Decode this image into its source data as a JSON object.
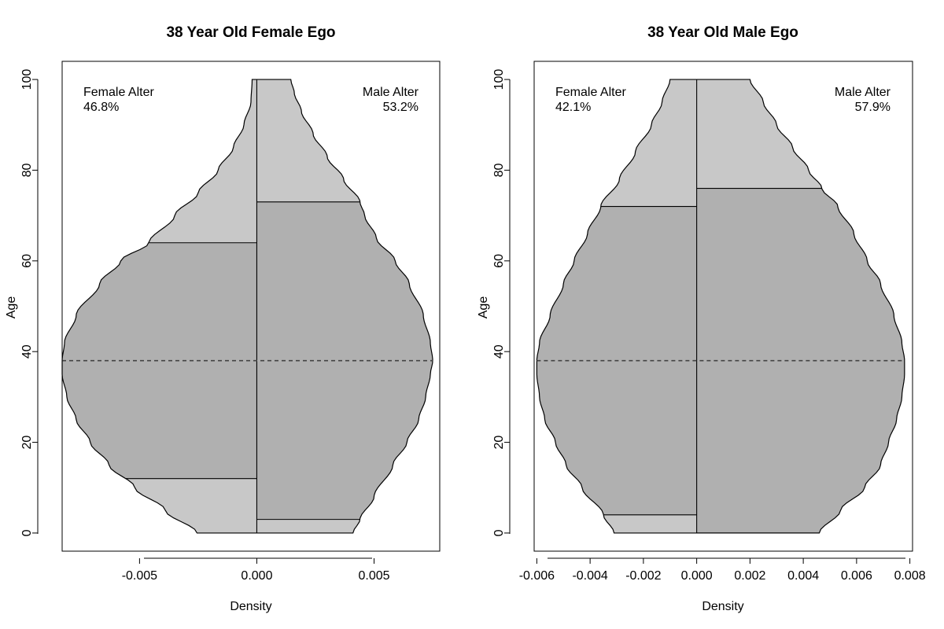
{
  "chart_data": [
    {
      "type": "violin",
      "title": "38 Year Old Female Ego",
      "xlabel": "Density",
      "ylabel": "Age",
      "xlim": [
        -0.0083,
        0.0078
      ],
      "ylim": [
        -4,
        104
      ],
      "x_ticks": [
        -0.005,
        0.0,
        0.005
      ],
      "x_tick_labels": [
        "-0.005",
        "0.000",
        "0.005"
      ],
      "y_ticks": [
        0,
        20,
        40,
        60,
        80,
        100
      ],
      "y_tick_labels": [
        "0",
        "20",
        "40",
        "60",
        "80",
        "100"
      ],
      "ego_age": 38,
      "fill_colors": {
        "outer": "#c8c8c8",
        "inner": "#b0b0b0"
      },
      "left": {
        "label": "Female Alter",
        "percent": "46.8%",
        "profile": [
          [
            0,
            0.00255
          ],
          [
            5,
            0.0039
          ],
          [
            10,
            0.0052
          ],
          [
            15,
            0.0063
          ],
          [
            20,
            0.0071
          ],
          [
            25,
            0.0077
          ],
          [
            30,
            0.0081
          ],
          [
            35,
            0.0083
          ],
          [
            38,
            0.0083
          ],
          [
            42,
            0.0082
          ],
          [
            48,
            0.0077
          ],
          [
            55,
            0.0067
          ],
          [
            60,
            0.0058
          ],
          [
            64,
            0.0046
          ],
          [
            70,
            0.0035
          ],
          [
            75,
            0.0025
          ],
          [
            80,
            0.00165
          ],
          [
            85,
            0.001
          ],
          [
            90,
            0.00055
          ],
          [
            95,
            0.00025
          ],
          [
            100,
            0.0002
          ]
        ],
        "band": [
          12,
          64
        ]
      },
      "right": {
        "label": "Male Alter",
        "percent": "53.2%",
        "profile": [
          [
            0,
            0.0041
          ],
          [
            3,
            0.0044
          ],
          [
            8,
            0.005
          ],
          [
            15,
            0.0058
          ],
          [
            20,
            0.0064
          ],
          [
            25,
            0.0069
          ],
          [
            30,
            0.0072
          ],
          [
            35,
            0.0074
          ],
          [
            38,
            0.0075
          ],
          [
            42,
            0.0074
          ],
          [
            48,
            0.0071
          ],
          [
            55,
            0.0065
          ],
          [
            60,
            0.0059
          ],
          [
            65,
            0.0051
          ],
          [
            70,
            0.0046
          ],
          [
            73,
            0.0044
          ],
          [
            78,
            0.0037
          ],
          [
            83,
            0.003
          ],
          [
            88,
            0.0024
          ],
          [
            93,
            0.0019
          ],
          [
            97,
            0.0016
          ],
          [
            100,
            0.00145
          ]
        ],
        "band": [
          3,
          73
        ]
      }
    },
    {
      "type": "violin",
      "title": "38 Year Old Male Ego",
      "xlabel": "Density",
      "ylabel": "Age",
      "xlim": [
        -0.0061,
        0.0081
      ],
      "ylim": [
        -4,
        104
      ],
      "x_ticks": [
        -0.006,
        -0.004,
        -0.002,
        0.0,
        0.002,
        0.004,
        0.006,
        0.008
      ],
      "x_tick_labels": [
        "-0.006",
        "-0.004",
        "-0.002",
        "0.000",
        "0.002",
        "0.004",
        "0.006",
        "0.008"
      ],
      "y_ticks": [
        0,
        20,
        40,
        60,
        80,
        100
      ],
      "y_tick_labels": [
        "0",
        "20",
        "40",
        "60",
        "80",
        "100"
      ],
      "ego_age": 38,
      "fill_colors": {
        "outer": "#c8c8c8",
        "inner": "#b0b0b0"
      },
      "left": {
        "label": "Female Alter",
        "percent": "42.1%",
        "profile": [
          [
            0,
            0.0031
          ],
          [
            4,
            0.0035
          ],
          [
            10,
            0.0043
          ],
          [
            15,
            0.0049
          ],
          [
            20,
            0.0053
          ],
          [
            25,
            0.0057
          ],
          [
            30,
            0.0059
          ],
          [
            35,
            0.006
          ],
          [
            38,
            0.006
          ],
          [
            42,
            0.0059
          ],
          [
            48,
            0.0055
          ],
          [
            55,
            0.005
          ],
          [
            60,
            0.0046
          ],
          [
            66,
            0.0041
          ],
          [
            72,
            0.0036
          ],
          [
            78,
            0.0029
          ],
          [
            84,
            0.0023
          ],
          [
            90,
            0.0017
          ],
          [
            95,
            0.0013
          ],
          [
            100,
            0.001
          ]
        ],
        "band": [
          4,
          72
        ]
      },
      "right": {
        "label": "Male Alter",
        "percent": "57.9%",
        "profile": [
          [
            0,
            0.0046
          ],
          [
            5,
            0.0054
          ],
          [
            10,
            0.0063
          ],
          [
            15,
            0.0069
          ],
          [
            20,
            0.0072
          ],
          [
            25,
            0.0075
          ],
          [
            30,
            0.0077
          ],
          [
            35,
            0.0078
          ],
          [
            38,
            0.0078
          ],
          [
            42,
            0.0077
          ],
          [
            48,
            0.0074
          ],
          [
            55,
            0.0069
          ],
          [
            60,
            0.0064
          ],
          [
            66,
            0.0059
          ],
          [
            72,
            0.0053
          ],
          [
            76,
            0.0047
          ],
          [
            80,
            0.0042
          ],
          [
            85,
            0.0036
          ],
          [
            90,
            0.003
          ],
          [
            95,
            0.0025
          ],
          [
            100,
            0.002
          ]
        ],
        "band": [
          0,
          76
        ]
      }
    }
  ]
}
